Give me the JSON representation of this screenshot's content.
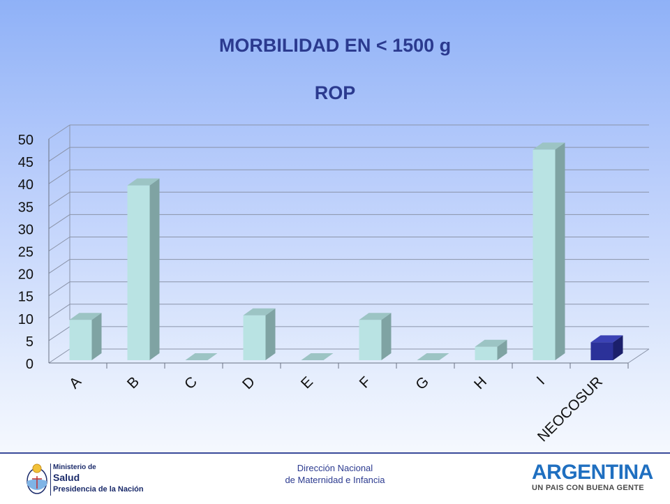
{
  "slide": {
    "title": "MORBILIDAD EN < 1500 g",
    "subtitle": "ROP"
  },
  "footer": {
    "center_line1": "Dirección Nacional",
    "center_line2": "de Maternidad e Infancia",
    "ministry_line1": "Ministerio de",
    "ministry_line2": "Salud",
    "ministry_line3": "Presidencia de la Nación",
    "brand_main": "ARGENTINA",
    "brand_tagline": "UN PAIS CON BUENA GENTE"
  },
  "colors": {
    "title": "#2b3a8f",
    "bar_front": "#b9e3e3",
    "bar_side": "#7fa3a3",
    "bar_top": "#9cc4c4",
    "highlight_front": "#2b3199",
    "highlight_side": "#1b1f6b",
    "highlight_top": "#3b42b5"
  },
  "chart_data": {
    "type": "bar",
    "title": "ROP",
    "categories": [
      "A",
      "B",
      "C",
      "D",
      "E",
      "F",
      "G",
      "H",
      "I",
      "NEOCOSUR"
    ],
    "values": [
      9,
      39,
      0,
      10,
      0,
      9,
      0,
      3,
      47,
      4
    ],
    "highlight": "NEOCOSUR",
    "ylim": [
      0,
      50
    ],
    "yticks": [
      "0",
      "5",
      "10",
      "15",
      "20",
      "25",
      "30",
      "35",
      "40",
      "45",
      "50"
    ],
    "grid": true,
    "style": "3d",
    "xlabel": "",
    "ylabel": ""
  }
}
